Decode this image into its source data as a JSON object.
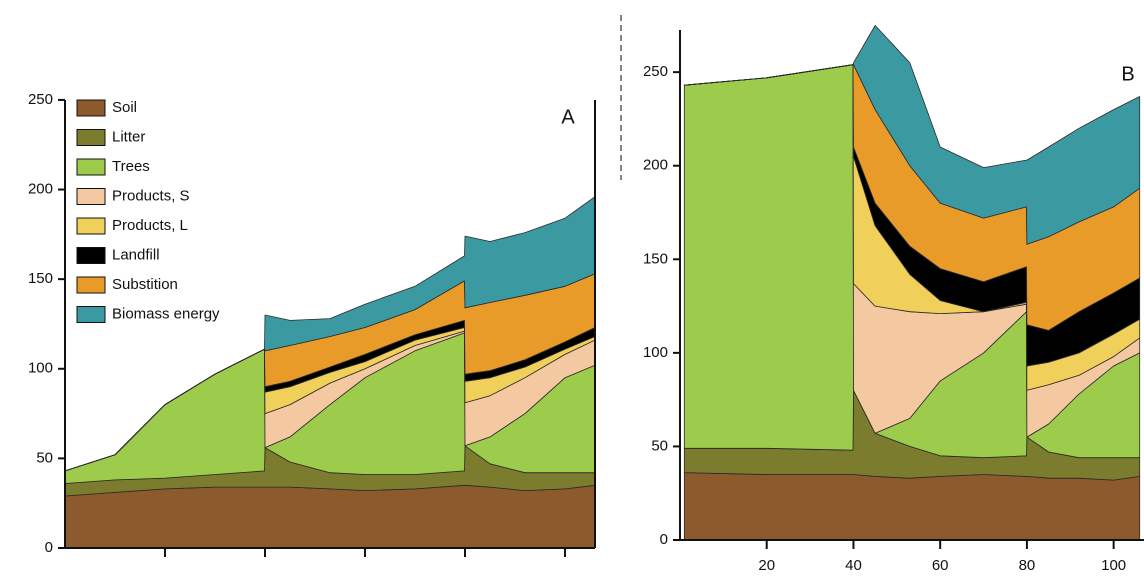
{
  "chart_data": [
    {
      "type": "stacked_area",
      "panel_label": "A",
      "x": [
        0,
        10,
        20,
        30,
        39.9,
        40,
        45,
        53,
        60,
        70,
        79.9,
        80,
        85,
        92,
        100,
        106
      ],
      "xlim": [
        0,
        106
      ],
      "xticks": [
        20,
        40,
        60,
        80,
        100
      ],
      "xtick_labels": false,
      "ylim": [
        0,
        260
      ],
      "yticks": [
        0,
        50,
        100,
        150,
        200,
        250
      ],
      "legend": "upper left",
      "series": [
        {
          "name": "Soil",
          "color": "#8c5a2c",
          "values": [
            29,
            31,
            33,
            34,
            34,
            34,
            34,
            33,
            32,
            33,
            35,
            35,
            34,
            32,
            33,
            35
          ]
        },
        {
          "name": "Litter",
          "color": "#7b7c2e",
          "values": [
            7,
            7,
            6,
            7,
            9,
            22,
            14,
            9,
            9,
            8,
            8,
            22,
            13,
            10,
            9,
            7
          ]
        },
        {
          "name": "Trees",
          "color": "#9dcb4c",
          "values": [
            7,
            14,
            41,
            56,
            68,
            0,
            14,
            38,
            54,
            69,
            77,
            0,
            15,
            33,
            53,
            60
          ]
        },
        {
          "name": "Products, S",
          "color": "#f4c9a2",
          "values": [
            0,
            0,
            0,
            0,
            0,
            19,
            18,
            12,
            5,
            3,
            1,
            24,
            23,
            20,
            13,
            14
          ]
        },
        {
          "name": "Products, L",
          "color": "#f0cf5a",
          "values": [
            0,
            0,
            0,
            0,
            0,
            12,
            10,
            6,
            4,
            3,
            2,
            12,
            10,
            6,
            3,
            2
          ]
        },
        {
          "name": "Landfill",
          "color": "#000000",
          "values": [
            0,
            0,
            0,
            0,
            0,
            3,
            3,
            3,
            4,
            3,
            4,
            4,
            4,
            4,
            4,
            5
          ]
        },
        {
          "name": "Substition",
          "color": "#e99b2a",
          "values": [
            0,
            0,
            0,
            0,
            0,
            20,
            20,
            17,
            15,
            14,
            22,
            37,
            38,
            36,
            31,
            30
          ]
        },
        {
          "name": "Biomass energy",
          "color": "#3b9aa1",
          "values": [
            0,
            0,
            0,
            0,
            0,
            20,
            14,
            10,
            13,
            13,
            14,
            40,
            34,
            35,
            38,
            43
          ]
        }
      ]
    },
    {
      "type": "stacked_area",
      "panel_label": "B",
      "x": [
        1,
        20,
        39.9,
        40,
        45,
        53,
        60,
        70,
        79.9,
        80,
        85,
        92,
        100,
        106
      ],
      "xlim": [
        0,
        107
      ],
      "xticks": [
        20,
        40,
        60,
        80,
        100
      ],
      "xtick_labels": true,
      "ylim": [
        0,
        280
      ],
      "yticks": [
        0,
        50,
        100,
        150,
        200,
        250
      ],
      "series": [
        {
          "name": "Soil",
          "color": "#8c5a2c",
          "values": [
            36,
            35,
            35,
            35,
            34,
            33,
            34,
            35,
            34,
            34,
            33,
            33,
            32,
            34
          ]
        },
        {
          "name": "Litter",
          "color": "#7b7c2e",
          "values": [
            13,
            14,
            13,
            45,
            23,
            17,
            11,
            9,
            11,
            21,
            14,
            11,
            12,
            10
          ]
        },
        {
          "name": "Trees",
          "color": "#9dcb4c",
          "values": [
            194,
            198,
            206,
            0,
            0,
            15,
            40,
            56,
            77,
            0,
            15,
            34,
            49,
            56
          ]
        },
        {
          "name": "Products, S",
          "color": "#f4c9a2",
          "values": [
            0,
            0,
            0,
            57,
            68,
            57,
            36,
            22,
            4,
            25,
            21,
            10,
            5,
            8
          ]
        },
        {
          "name": "Products, L",
          "color": "#f0cf5a",
          "values": [
            0,
            0,
            0,
            68,
            43,
            20,
            7,
            0,
            1,
            13,
            12,
            12,
            12,
            10
          ]
        },
        {
          "name": "Landfill",
          "color": "#000000",
          "values": [
            0,
            0,
            0,
            5,
            12,
            15,
            17,
            16,
            19,
            22,
            17,
            22,
            22,
            22
          ]
        },
        {
          "name": "Substition",
          "color": "#e99b2a",
          "values": [
            0,
            0,
            0,
            44,
            50,
            43,
            35,
            34,
            32,
            43,
            50,
            48,
            46,
            48
          ]
        },
        {
          "name": "Biomass energy",
          "color": "#3b9aa1",
          "values": [
            0,
            0,
            0,
            1,
            45,
            55,
            30,
            27,
            25,
            45,
            48,
            50,
            52,
            49
          ]
        }
      ]
    }
  ]
}
